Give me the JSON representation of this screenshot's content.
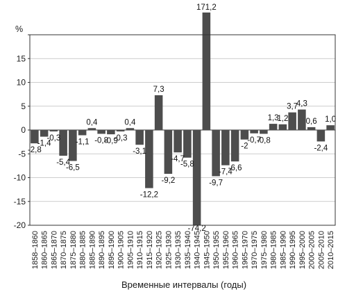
{
  "chart_data": {
    "type": "bar",
    "ylabel": "%",
    "xlabel": "Временные интервалы (годы)",
    "ylim": [
      -20,
      20
    ],
    "yticks": [
      -20,
      -15,
      -10,
      -5,
      0,
      5,
      10,
      15
    ],
    "grid": true,
    "bar_color": "#4d4d4d",
    "categories": [
      "1858–1860",
      "1860–1865",
      "1865–1870",
      "1870–1875",
      "1875–1880",
      "1880–1885",
      "1885–1890",
      "1890–1895",
      "1895–1900",
      "1900–1905",
      "1905–1910",
      "1910–1915",
      "1915–1920",
      "1920–1925",
      "1925–1930",
      "1930–1935",
      "1935–1940",
      "1940–1945",
      "1945–1950",
      "1950–1955",
      "1955–1960",
      "1960–1965",
      "1965–1970",
      "1970–1975",
      "1975–1980",
      "1980–1985",
      "1985–1990",
      "1990–1995",
      "1995–2000",
      "2000–2005",
      "2005–2010",
      "2010–2015"
    ],
    "values": [
      -2.8,
      -1.4,
      -0.3,
      -5.4,
      -6.5,
      -1.1,
      0.4,
      -0.8,
      -0.9,
      -0.3,
      0.4,
      -3.1,
      -12.2,
      7.3,
      -9.2,
      -4.7,
      -5.8,
      -74.2,
      171.2,
      -9.7,
      -7.4,
      -6.6,
      -2,
      -0.7,
      -0.8,
      1.3,
      1.2,
      3.7,
      4.3,
      0.6,
      -2.4,
      1.0
    ],
    "data_labels": [
      "-2,8",
      "-1,4",
      "-0,3",
      "-5,4",
      "-6,5",
      "-1,1",
      "0,4",
      "-0,8",
      "-0,9",
      "-0,3",
      "0,4",
      "-3,1",
      "-12,2",
      "7,3",
      "-9,2",
      "-4,7",
      "-5,8",
      "-74,2",
      "171,2",
      "-9,7",
      "-7,4",
      "-6,6",
      "-2",
      "-0,7",
      "-0,8",
      "1,3",
      "1,2",
      "3,7",
      "4,3",
      "0,6",
      "-2,4",
      "1,0"
    ]
  }
}
